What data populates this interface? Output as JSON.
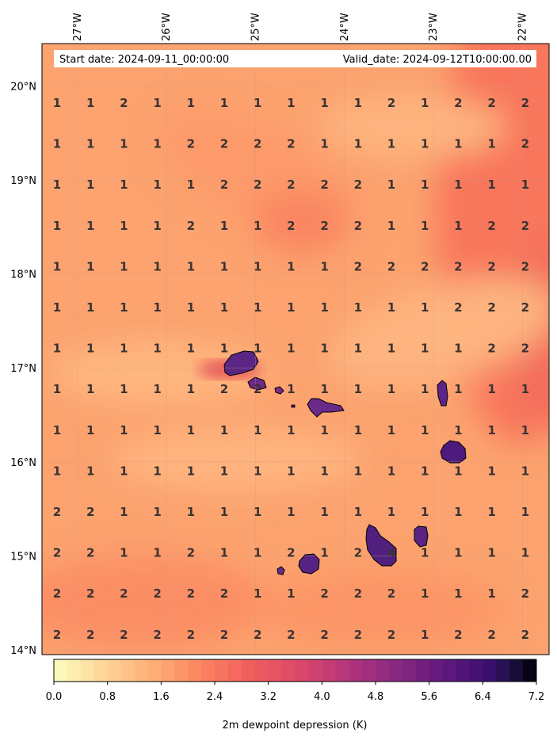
{
  "header": {
    "start_date": "Start date: 2024-09-11_00:00:00",
    "valid_date": "Valid_date: 2024-09-12T10:00:00.00"
  },
  "map": {
    "lon_range": [
      -27.4,
      -21.7
    ],
    "lat_range": [
      13.95,
      20.45
    ],
    "lon_ticks": [
      "27°W",
      "26°W",
      "25°W",
      "24°W",
      "23°W",
      "22°W"
    ],
    "lon_tick_values": [
      -27,
      -26,
      -25,
      -24,
      -23,
      -22
    ],
    "lat_ticks": [
      "20°N",
      "19°N",
      "18°N",
      "17°N",
      "16°N",
      "15°N",
      "14°N"
    ],
    "lat_tick_values": [
      20,
      19,
      18,
      17,
      16,
      15,
      14
    ],
    "grid": true,
    "background_color": "#fca36f"
  },
  "station_grid": {
    "rows": [
      [
        1,
        1,
        2,
        1,
        1,
        1,
        1,
        1,
        1,
        1,
        2,
        1,
        2,
        2,
        2
      ],
      [
        1,
        1,
        1,
        1,
        2,
        2,
        2,
        2,
        1,
        1,
        1,
        1,
        1,
        1,
        2
      ],
      [
        1,
        1,
        1,
        1,
        1,
        2,
        2,
        2,
        2,
        2,
        1,
        1,
        1,
        1,
        1
      ],
      [
        1,
        1,
        1,
        1,
        2,
        1,
        1,
        2,
        2,
        2,
        1,
        1,
        1,
        2,
        2
      ],
      [
        1,
        1,
        1,
        1,
        1,
        1,
        1,
        1,
        1,
        2,
        2,
        2,
        2,
        2,
        2
      ],
      [
        1,
        1,
        1,
        1,
        1,
        1,
        1,
        1,
        1,
        1,
        1,
        1,
        2,
        2,
        2
      ],
      [
        1,
        1,
        1,
        1,
        1,
        1,
        1,
        1,
        1,
        1,
        1,
        1,
        1,
        2,
        2
      ],
      [
        1,
        1,
        1,
        1,
        1,
        2,
        2,
        1,
        1,
        1,
        1,
        1,
        1,
        1,
        1
      ],
      [
        1,
        1,
        1,
        1,
        1,
        1,
        1,
        1,
        1,
        1,
        1,
        1,
        1,
        1,
        1
      ],
      [
        1,
        1,
        1,
        1,
        1,
        1,
        1,
        1,
        1,
        1,
        1,
        1,
        1,
        1,
        1
      ],
      [
        2,
        2,
        1,
        1,
        1,
        1,
        1,
        1,
        1,
        1,
        1,
        1,
        1,
        1,
        1
      ],
      [
        2,
        2,
        1,
        1,
        2,
        1,
        1,
        2,
        1,
        2,
        4,
        1,
        1,
        1,
        1
      ],
      [
        2,
        2,
        2,
        2,
        2,
        2,
        1,
        1,
        2,
        2,
        2,
        1,
        1,
        1,
        2
      ],
      [
        2,
        2,
        2,
        2,
        2,
        2,
        2,
        2,
        2,
        2,
        2,
        1,
        2,
        2,
        2
      ]
    ]
  },
  "colorbar": {
    "label": "2m dewpoint depression (K)",
    "min": 0,
    "max": 7.2,
    "tick_labels": [
      "0.0",
      "0.8",
      "1.6",
      "2.4",
      "3.2",
      "4.0",
      "4.8",
      "5.6",
      "6.4",
      "7.2"
    ],
    "tick_values": [
      0,
      0.8,
      1.6,
      2.4,
      3.2,
      4.0,
      4.8,
      5.6,
      6.4,
      7.2
    ],
    "colormap": "magma_r",
    "levels": 36
  }
}
